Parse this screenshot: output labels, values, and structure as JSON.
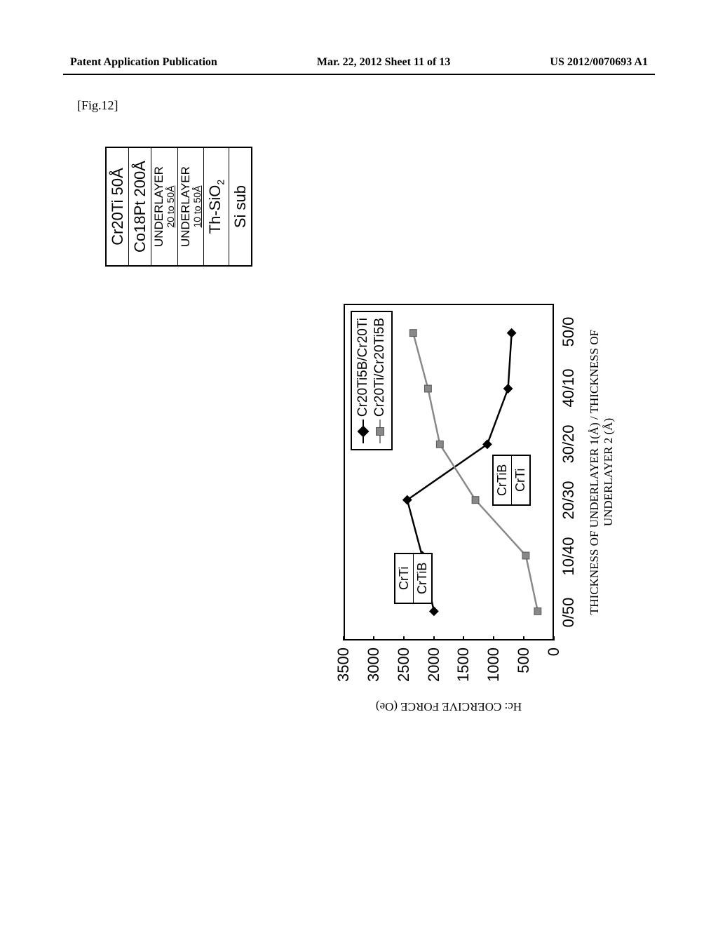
{
  "header": {
    "left": "Patent Application Publication",
    "center": "Mar. 22, 2012  Sheet 11 of 13",
    "right": "US 2012/0070693 A1"
  },
  "figure_label": "[Fig.12]",
  "stack": {
    "rows": [
      "Cr20Ti 50Å",
      "Co18Pt 200Å",
      "UNDERLAYER\n20 to 50Å",
      "UNDERLAYER\n10 to 50Å",
      "Th-SiO2",
      "Si sub"
    ]
  },
  "chart": {
    "type": "line",
    "ylabel": "Hc: COERCIVE FORCE (Oe)",
    "xlabel": "THICKNESS OF UNDERLAYER 1(Å) / THICKNESS OF UNDERLAYER 2 (Å)",
    "ylim": [
      0,
      3500
    ],
    "ytick_step": 500,
    "yticks": [
      0,
      500,
      1000,
      1500,
      2000,
      2500,
      3000,
      3500
    ],
    "xticks": [
      "0/50",
      "10/40",
      "20/30",
      "30/20",
      "40/10",
      "50/0"
    ],
    "background_color": "#ffffff",
    "border_color": "#000000",
    "series": [
      {
        "name": "Cr20Ti5B/Cr20Ti",
        "marker": "diamond",
        "color": "#000000",
        "values": [
          2000,
          2200,
          2450,
          1100,
          750,
          690
        ]
      },
      {
        "name": "Cr20Ti/Cr20Ti5B",
        "marker": "square",
        "color": "#888888",
        "values": [
          250,
          450,
          1300,
          1900,
          2100,
          2350
        ]
      }
    ],
    "inset_a": {
      "top_row": "CrTi",
      "bot_row": "CrTiB"
    },
    "inset_b": {
      "top_row": "CrTiB",
      "bot_row": "CrTi"
    },
    "legend": {
      "items": [
        {
          "label": "Cr20Ti5B/Cr20Ti"
        },
        {
          "label": "Cr20Ti/Cr20Ti5B"
        }
      ]
    }
  }
}
